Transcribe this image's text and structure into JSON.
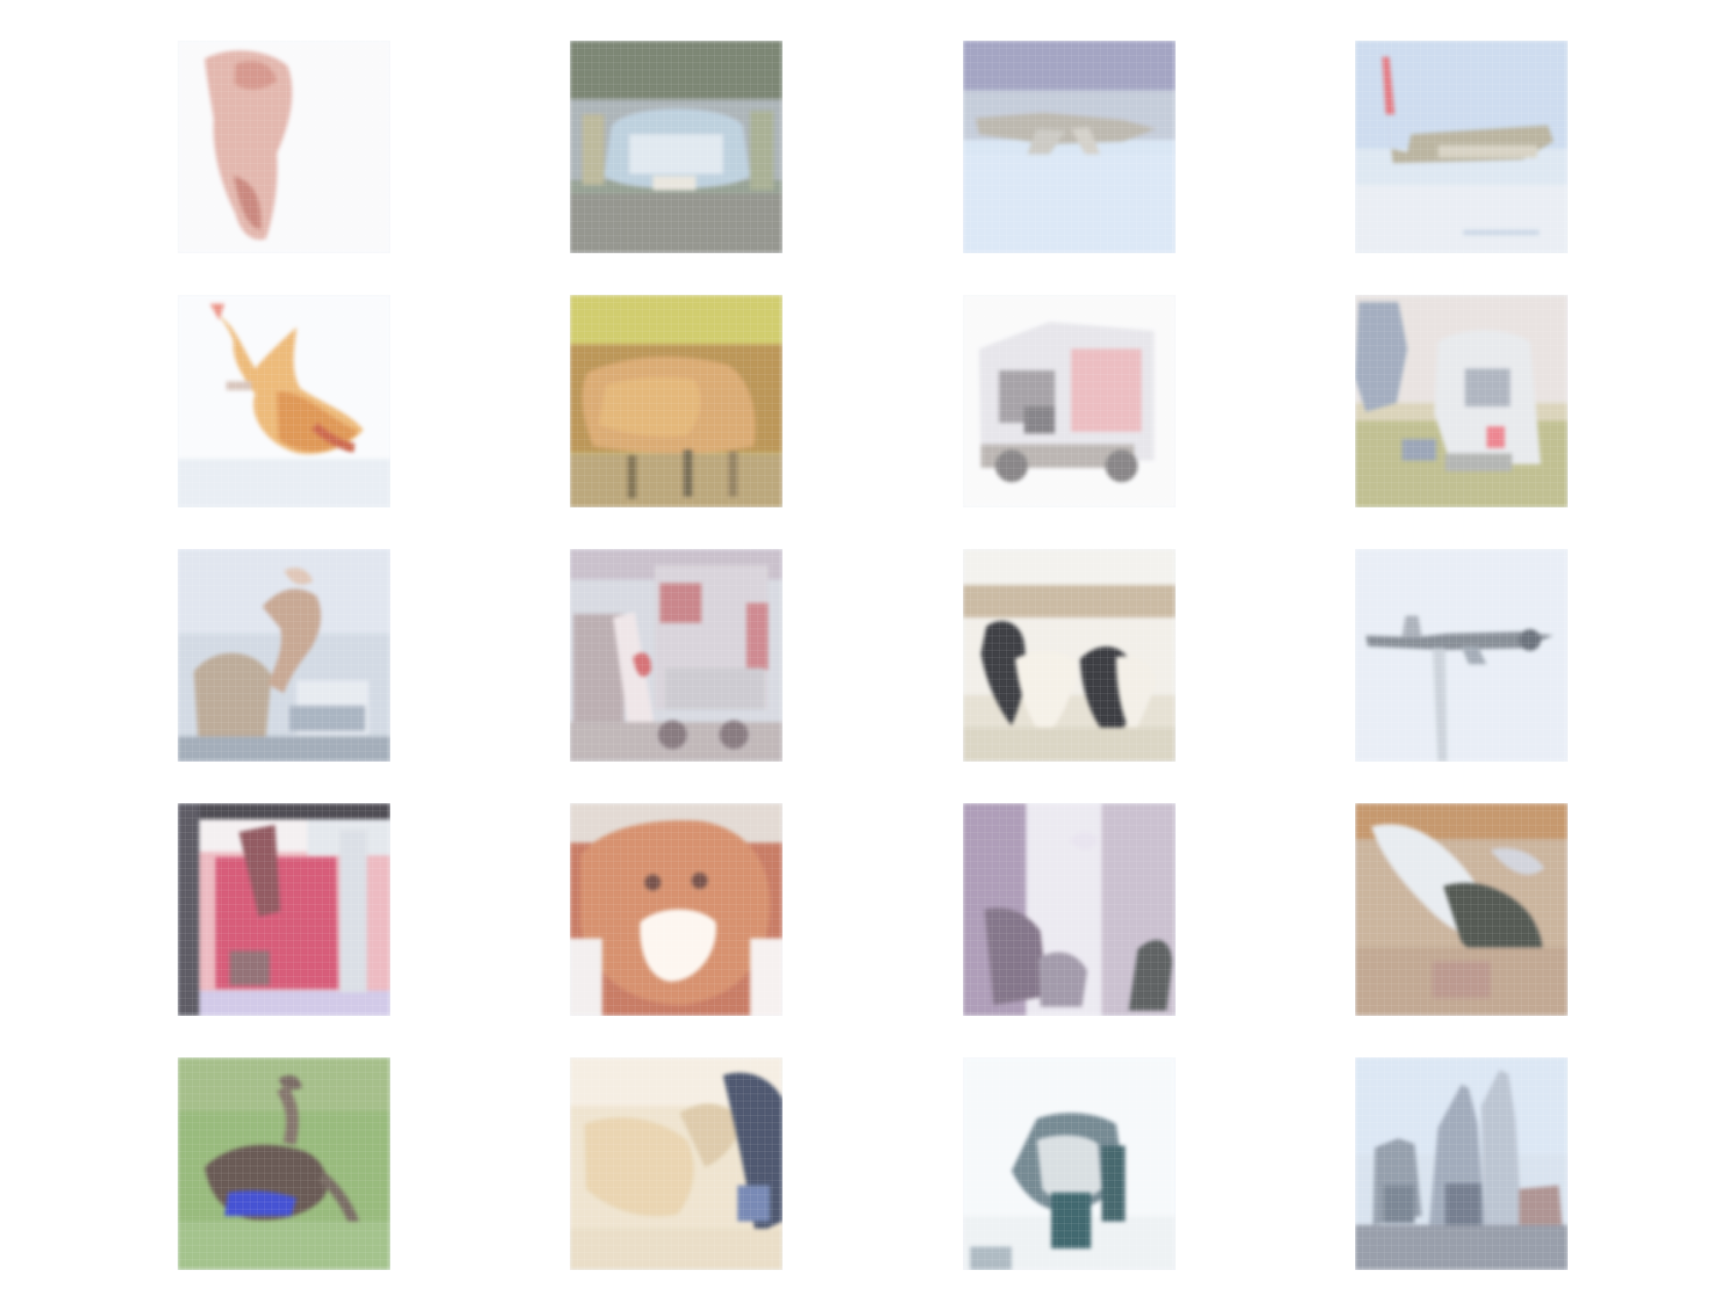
{
  "gallery": {
    "rows": 5,
    "columns": 4,
    "items": [
      {
        "subject": "standing-figure-pink"
      },
      {
        "subject": "blue-car-front"
      },
      {
        "subject": "airplane-on-snow"
      },
      {
        "subject": "airplane-on-runway"
      },
      {
        "subject": "orange-bird-on-water"
      },
      {
        "subject": "brown-animal-in-foliage"
      },
      {
        "subject": "white-red-truck"
      },
      {
        "subject": "vehicle-on-grass"
      },
      {
        "subject": "person-with-animal"
      },
      {
        "subject": "red-white-truck-side"
      },
      {
        "subject": "black-white-dogs"
      },
      {
        "subject": "airplane-in-sky"
      },
      {
        "subject": "red-interior-scene"
      },
      {
        "subject": "cat-face-closeup"
      },
      {
        "subject": "cluttered-purple-scene"
      },
      {
        "subject": "lizard-closeup"
      },
      {
        "subject": "dark-bird-on-grass"
      },
      {
        "subject": "fur-texture-closeup"
      },
      {
        "subject": "teal-object-closeup"
      },
      {
        "subject": "city-buildings"
      }
    ]
  }
}
